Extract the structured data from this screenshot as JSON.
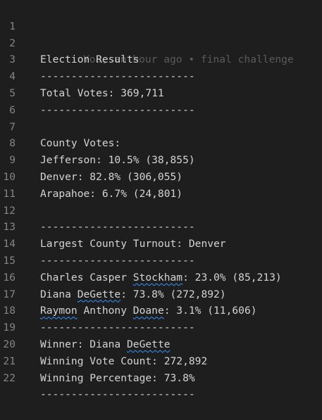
{
  "editor": {
    "blame": "You, an hour ago • final challenge",
    "lines": [
      {
        "num": "1",
        "text": ""
      },
      {
        "num": "2",
        "text": "Election Results"
      },
      {
        "num": "3",
        "text": "-------------------------"
      },
      {
        "num": "4",
        "text": "Total Votes: 369,711"
      },
      {
        "num": "5",
        "text": "-------------------------"
      },
      {
        "num": "6",
        "text": ""
      },
      {
        "num": "7",
        "text": "County Votes:"
      },
      {
        "num": "8",
        "text": "Jefferson: 10.5% (38,855)"
      },
      {
        "num": "9",
        "text": "Denver: 82.8% (306,055)"
      },
      {
        "num": "10",
        "text": "Arapahoe: 6.7% (24,801)"
      },
      {
        "num": "11",
        "text": ""
      },
      {
        "num": "12",
        "text": "-------------------------"
      },
      {
        "num": "13",
        "text": "Largest County Turnout: Denver"
      },
      {
        "num": "14",
        "text": "-------------------------"
      },
      {
        "num": "15",
        "pre": "Charles Casper ",
        "sq": "Stockham",
        "post": ": 23.0% (85,213)"
      },
      {
        "num": "16",
        "pre": "Diana ",
        "sq": "DeGette",
        "post": ": 73.8% (272,892)"
      },
      {
        "num": "17",
        "sq": "Raymon",
        "mid": " Anthony ",
        "sq2": "Doane",
        "post": ": 3.1% (11,606)"
      },
      {
        "num": "18",
        "text": "-------------------------"
      },
      {
        "num": "19",
        "pre": "Winner: Diana ",
        "sq": "DeGette",
        "post": ""
      },
      {
        "num": "20",
        "text": "Winning Vote Count: 272,892"
      },
      {
        "num": "21",
        "text": "Winning Percentage: 73.8%"
      },
      {
        "num": "22",
        "text": "-------------------------"
      }
    ]
  }
}
